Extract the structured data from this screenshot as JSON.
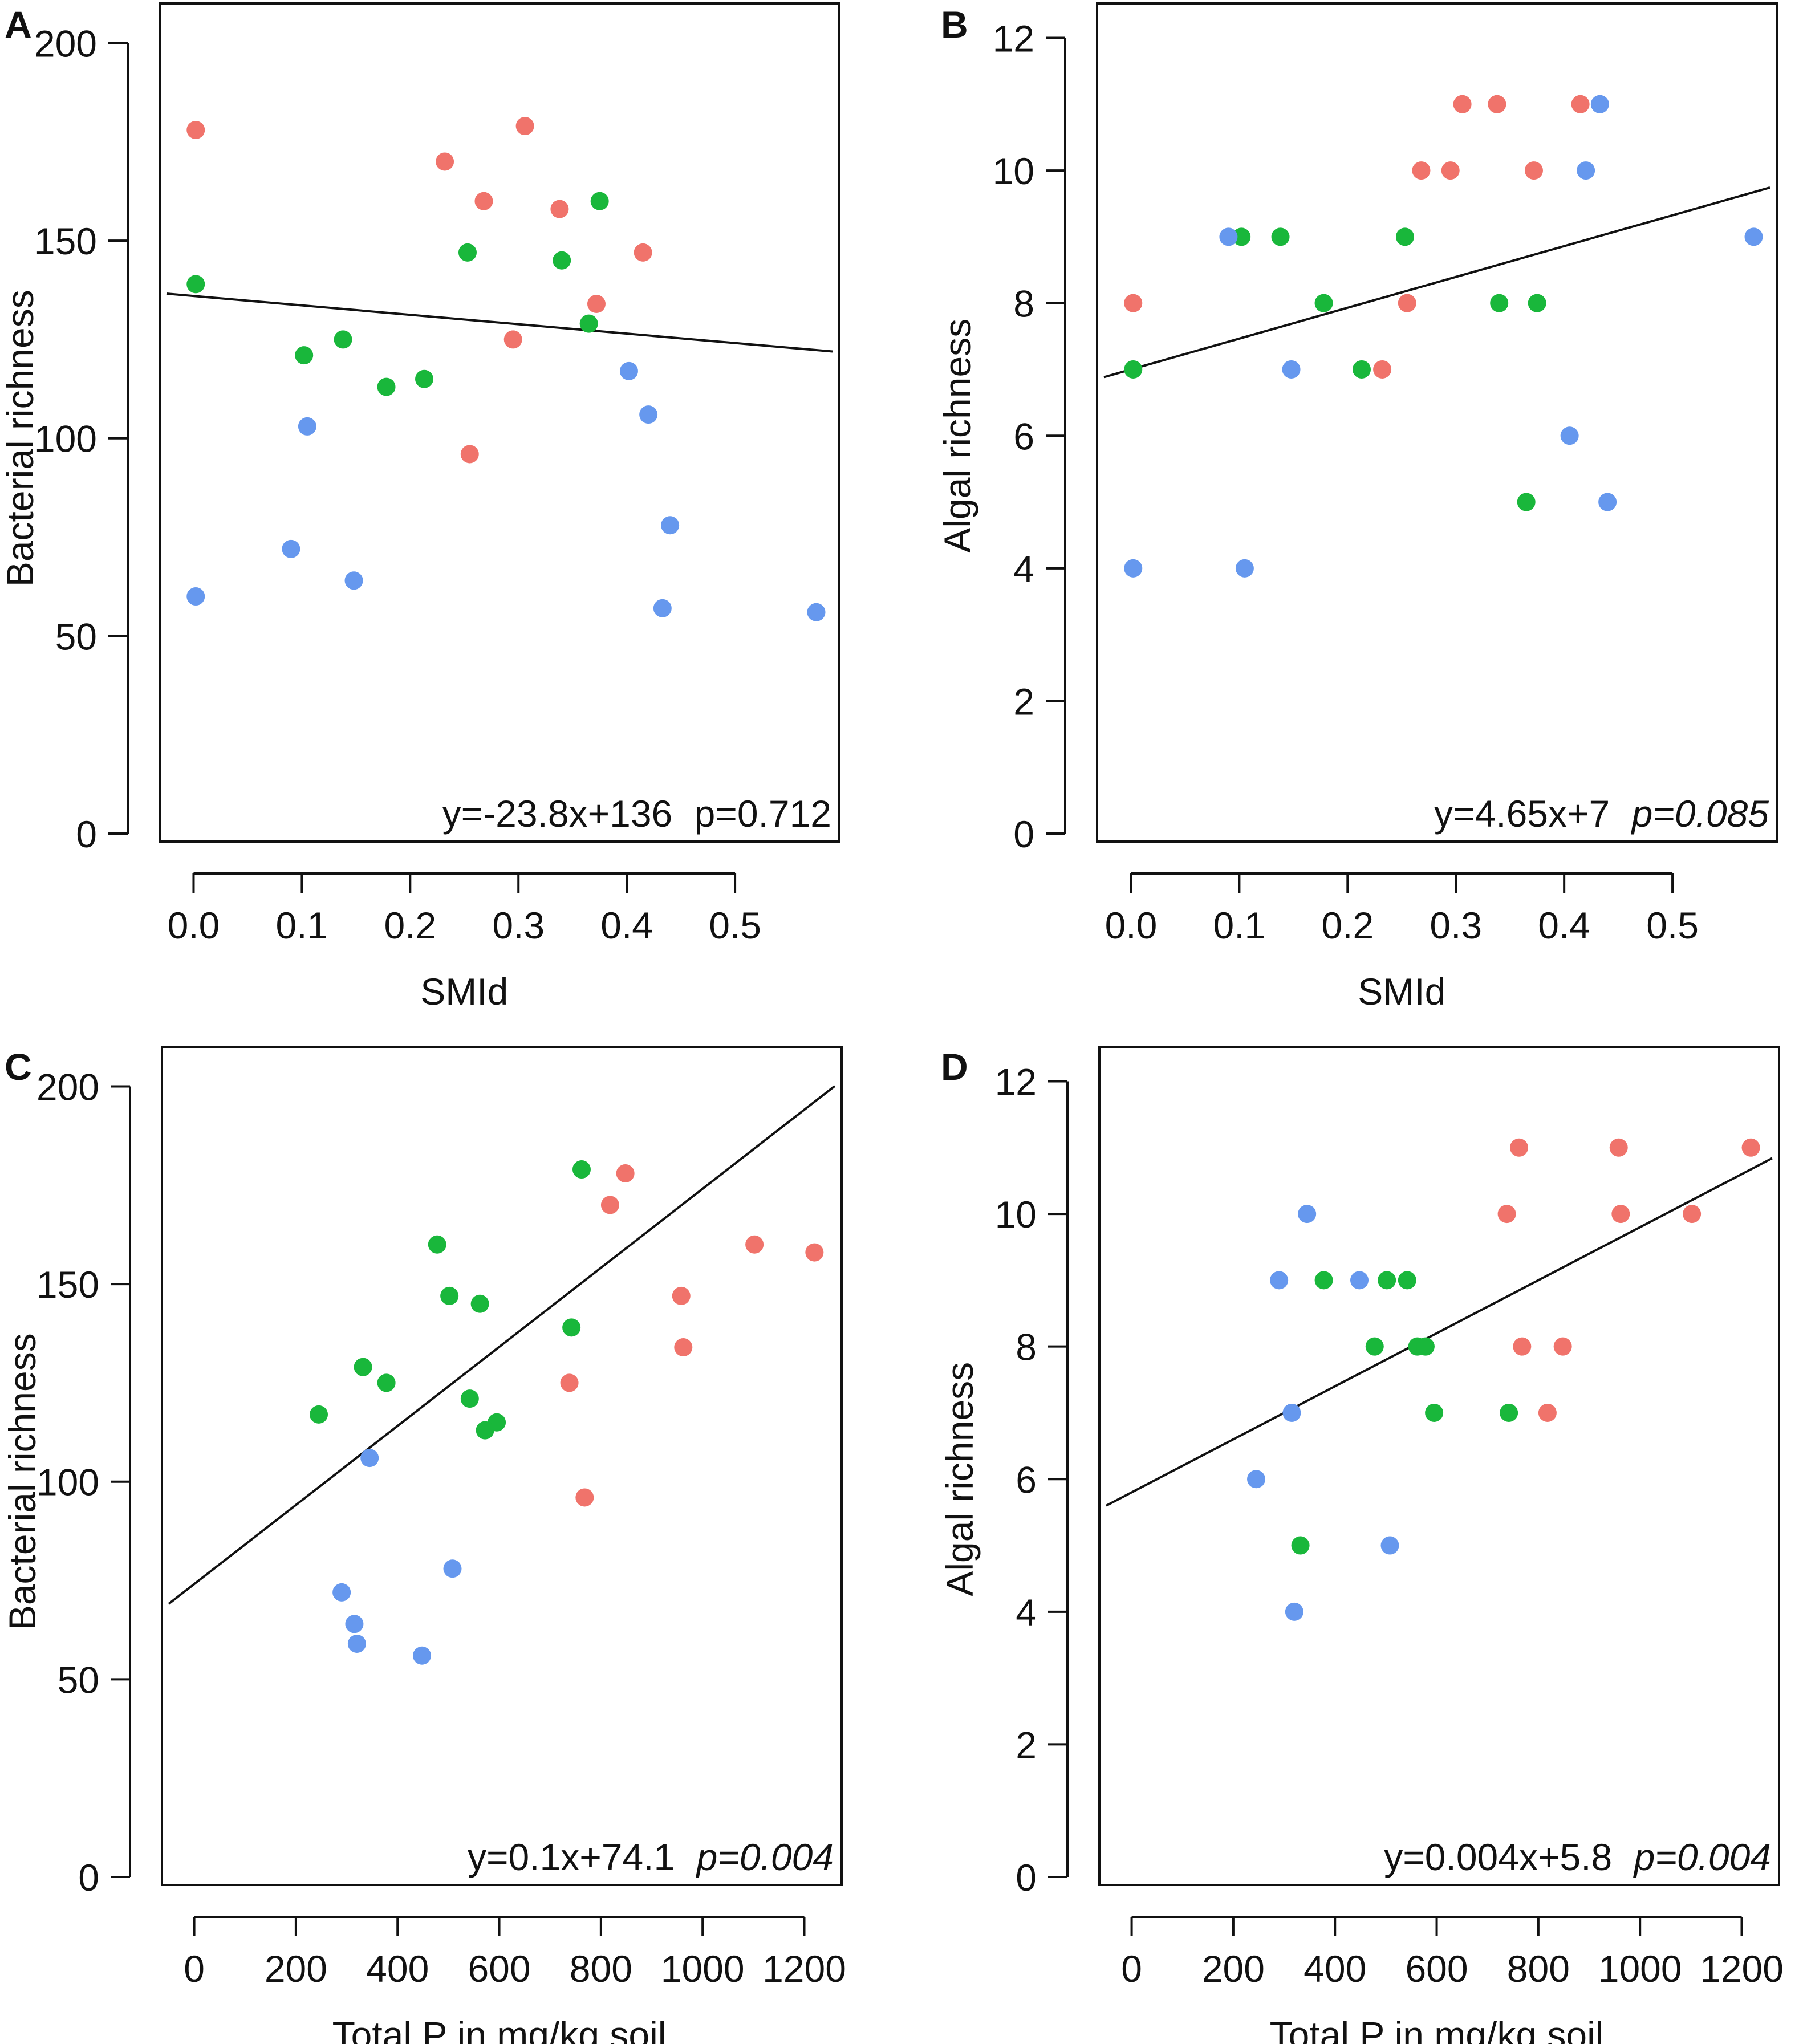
{
  "colors": {
    "red": "#F0736B",
    "green": "#19B73B",
    "blue": "#6698EE",
    "axis": "#111111"
  },
  "chart_data": [
    {
      "panel": "A",
      "type": "scatter",
      "xlabel": "SMId",
      "ylabel": "Bacterial richness",
      "xlim": [
        -0.025,
        0.59
      ],
      "ylim": [
        0,
        208
      ],
      "xticks": [
        0.0,
        0.1,
        0.2,
        0.3,
        0.4,
        0.5
      ],
      "xtick_labels": [
        "0.0",
        "0.1",
        "0.2",
        "0.3",
        "0.4",
        "0.5"
      ],
      "yticks": [
        0,
        50,
        100,
        150,
        200
      ],
      "ytick_labels": [
        "0",
        "50",
        "100",
        "150",
        "200"
      ],
      "fit": {
        "slope": -23.8,
        "intercept": 136,
        "x_range": [
          -0.025,
          0.59
        ]
      },
      "annotation": {
        "equation": "y=-23.8x+136",
        "p_value": "p=0.712",
        "p_italic": false
      },
      "series": [
        {
          "name": "red",
          "color": "red",
          "points": [
            [
              0.002,
              178
            ],
            [
              0.232,
              170
            ],
            [
              0.268,
              160
            ],
            [
              0.306,
              179
            ],
            [
              0.338,
              158
            ],
            [
              0.372,
              134
            ],
            [
              0.415,
              147
            ],
            [
              0.295,
              125
            ],
            [
              0.255,
              96
            ]
          ]
        },
        {
          "name": "green",
          "color": "green",
          "points": [
            [
              0.002,
              139
            ],
            [
              0.102,
              121
            ],
            [
              0.138,
              125
            ],
            [
              0.178,
              113
            ],
            [
              0.213,
              115
            ],
            [
              0.253,
              147
            ],
            [
              0.34,
              145
            ],
            [
              0.375,
              160
            ],
            [
              0.365,
              129
            ]
          ]
        },
        {
          "name": "blue",
          "color": "blue",
          "points": [
            [
              0.002,
              60
            ],
            [
              0.09,
              72
            ],
            [
              0.105,
              103
            ],
            [
              0.148,
              64
            ],
            [
              0.402,
              117
            ],
            [
              0.42,
              106
            ],
            [
              0.44,
              78
            ],
            [
              0.433,
              57
            ],
            [
              0.575,
              56
            ]
          ]
        }
      ]
    },
    {
      "panel": "B",
      "type": "scatter",
      "xlabel": "SMId",
      "ylabel": "Algal richness",
      "xlim": [
        -0.025,
        0.59
      ],
      "ylim": [
        0,
        12.4
      ],
      "xticks": [
        0.0,
        0.1,
        0.2,
        0.3,
        0.4,
        0.5
      ],
      "xtick_labels": [
        "0.0",
        "0.1",
        "0.2",
        "0.3",
        "0.4",
        "0.5"
      ],
      "yticks": [
        0,
        2,
        4,
        6,
        8,
        10,
        12
      ],
      "ytick_labels": [
        "0",
        "2",
        "4",
        "6",
        "8",
        "10",
        "12"
      ],
      "fit": {
        "slope": 4.65,
        "intercept": 7,
        "x_range": [
          -0.025,
          0.59
        ]
      },
      "annotation": {
        "equation": "y=4.65x+7",
        "p_value": "p=0.085",
        "p_italic": true
      },
      "series": [
        {
          "name": "red",
          "color": "red",
          "points": [
            [
              0.002,
              8
            ],
            [
              0.232,
              7
            ],
            [
              0.255,
              8
            ],
            [
              0.268,
              10
            ],
            [
              0.295,
              10
            ],
            [
              0.306,
              11
            ],
            [
              0.338,
              11
            ],
            [
              0.372,
              10
            ],
            [
              0.415,
              11
            ]
          ]
        },
        {
          "name": "green",
          "color": "green",
          "points": [
            [
              0.002,
              7
            ],
            [
              0.102,
              9
            ],
            [
              0.138,
              9
            ],
            [
              0.178,
              8
            ],
            [
              0.213,
              7
            ],
            [
              0.253,
              9
            ],
            [
              0.34,
              8
            ],
            [
              0.375,
              8
            ],
            [
              0.365,
              5
            ]
          ]
        },
        {
          "name": "blue",
          "color": "blue",
          "points": [
            [
              0.002,
              4
            ],
            [
              0.09,
              9
            ],
            [
              0.105,
              4
            ],
            [
              0.148,
              7
            ],
            [
              0.405,
              6
            ],
            [
              0.42,
              10
            ],
            [
              0.433,
              11
            ],
            [
              0.44,
              5
            ],
            [
              0.575,
              9
            ]
          ]
        }
      ]
    },
    {
      "panel": "C",
      "type": "scatter",
      "xlabel": "Total P in mg/kg soil",
      "ylabel": "Bacterial richness",
      "xlim": [
        -50,
        1260
      ],
      "ylim": [
        0,
        208
      ],
      "xticks": [
        0,
        200,
        400,
        600,
        800,
        1000,
        1200
      ],
      "xtick_labels": [
        "0",
        "200",
        "400",
        "600",
        "800",
        "1000",
        "1200"
      ],
      "yticks": [
        0,
        50,
        100,
        150,
        200
      ],
      "ytick_labels": [
        "0",
        "50",
        "100",
        "150",
        "200"
      ],
      "fit": {
        "slope": 0.1,
        "intercept": 74.1,
        "x_range": [
          -50,
          1260
        ]
      },
      "annotation": {
        "equation": "y=0.1x+74.1",
        "p_value": "p=0.004",
        "p_italic": true
      },
      "series": [
        {
          "name": "red",
          "color": "red",
          "points": [
            [
              848,
              178
            ],
            [
              818,
              170
            ],
            [
              1102,
              160
            ],
            [
              1220,
              158
            ],
            [
              958,
              147
            ],
            [
              962,
              134
            ],
            [
              738,
              125
            ],
            [
              768,
              96
            ]
          ]
        },
        {
          "name": "green",
          "color": "green",
          "points": [
            [
              762,
              179
            ],
            [
              478,
              160
            ],
            [
              502,
              147
            ],
            [
              562,
              145
            ],
            [
              742,
              139
            ],
            [
              332,
              129
            ],
            [
              378,
              125
            ],
            [
              542,
              121
            ],
            [
              595,
              115
            ],
            [
              572,
              113
            ],
            [
              245,
              117
            ]
          ]
        },
        {
          "name": "blue",
          "color": "blue",
          "points": [
            [
              345,
              106
            ],
            [
              508,
              78
            ],
            [
              290,
              72
            ],
            [
              315,
              64
            ],
            [
              320,
              59
            ],
            [
              448,
              56
            ]
          ]
        }
      ]
    },
    {
      "panel": "D",
      "type": "scatter",
      "xlabel": "Total P in mg/kg soil",
      "ylabel": "Algal richness",
      "xlim": [
        -50,
        1260
      ],
      "ylim": [
        0,
        12.4
      ],
      "xticks": [
        0,
        200,
        400,
        600,
        800,
        1000,
        1200
      ],
      "xtick_labels": [
        "0",
        "200",
        "400",
        "600",
        "800",
        "1000",
        "1200"
      ],
      "yticks": [
        0,
        2,
        4,
        6,
        8,
        10,
        12
      ],
      "ytick_labels": [
        "0",
        "2",
        "4",
        "6",
        "8",
        "10",
        "12"
      ],
      "fit": {
        "slope": 0.004,
        "intercept": 5.8,
        "x_range": [
          -50,
          1260
        ]
      },
      "annotation": {
        "equation": "y=0.004x+5.8",
        "p_value": "p=0.004",
        "p_italic": true
      },
      "series": [
        {
          "name": "red",
          "color": "red",
          "points": [
            [
              762,
              11
            ],
            [
              958,
              11
            ],
            [
              1218,
              11
            ],
            [
              738,
              10
            ],
            [
              962,
              10
            ],
            [
              1102,
              10
            ],
            [
              768,
              8
            ],
            [
              848,
              8
            ],
            [
              818,
              7
            ]
          ]
        },
        {
          "name": "green",
          "color": "green",
          "points": [
            [
              378,
              9
            ],
            [
              502,
              9
            ],
            [
              542,
              9
            ],
            [
              478,
              8
            ],
            [
              562,
              8
            ],
            [
              578,
              8
            ],
            [
              595,
              7
            ],
            [
              742,
              7
            ],
            [
              332,
              5
            ]
          ]
        },
        {
          "name": "blue",
          "color": "blue",
          "points": [
            [
              345,
              10
            ],
            [
              290,
              9
            ],
            [
              448,
              9
            ],
            [
              315,
              7
            ],
            [
              245,
              6
            ],
            [
              508,
              5
            ],
            [
              320,
              4
            ]
          ]
        }
      ]
    }
  ]
}
